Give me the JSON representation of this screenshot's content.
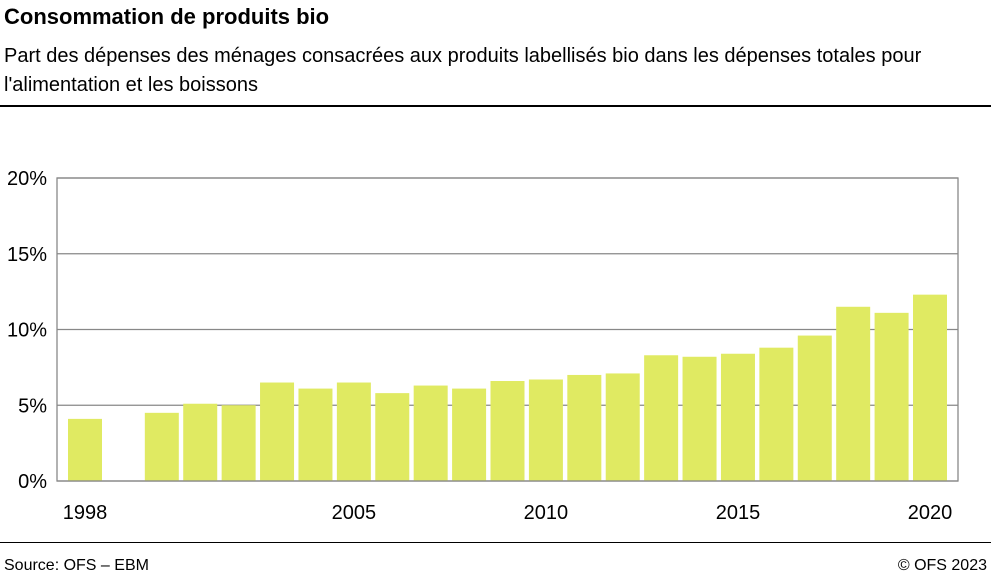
{
  "title": "Consommation de produits bio",
  "subtitle": "Part des dépenses des ménages consacrées aux produits labellisés bio dans les dépenses totales pour l'alimentation et les boissons",
  "source": "Source: OFS – EBM",
  "copyright": "© OFS 2023",
  "chart_data": {
    "type": "bar",
    "title": "Consommation de produits bio",
    "xlabel": "",
    "ylabel": "",
    "categories": [
      "1998",
      "1999",
      "2000",
      "2001",
      "2002",
      "2003",
      "2004",
      "2005",
      "2006",
      "2007",
      "2008",
      "2009",
      "2010",
      "2011",
      "2012",
      "2013",
      "2014",
      "2015",
      "2016",
      "2017",
      "2018",
      "2019",
      "2020"
    ],
    "values": [
      4.1,
      null,
      4.5,
      5.1,
      5.0,
      6.5,
      6.1,
      6.5,
      5.8,
      6.3,
      6.1,
      6.6,
      6.7,
      7.0,
      7.1,
      8.3,
      8.2,
      8.4,
      8.8,
      9.6,
      11.5,
      11.1,
      12.3
    ],
    "x_tick_labels": [
      "1998",
      "2005",
      "2010",
      "2015",
      "2020"
    ],
    "y_tick_labels": [
      "0%",
      "5%",
      "10%",
      "15%",
      "20%"
    ],
    "ylim": [
      0,
      20
    ],
    "grid": true,
    "bar_color": "#e0ea62"
  }
}
